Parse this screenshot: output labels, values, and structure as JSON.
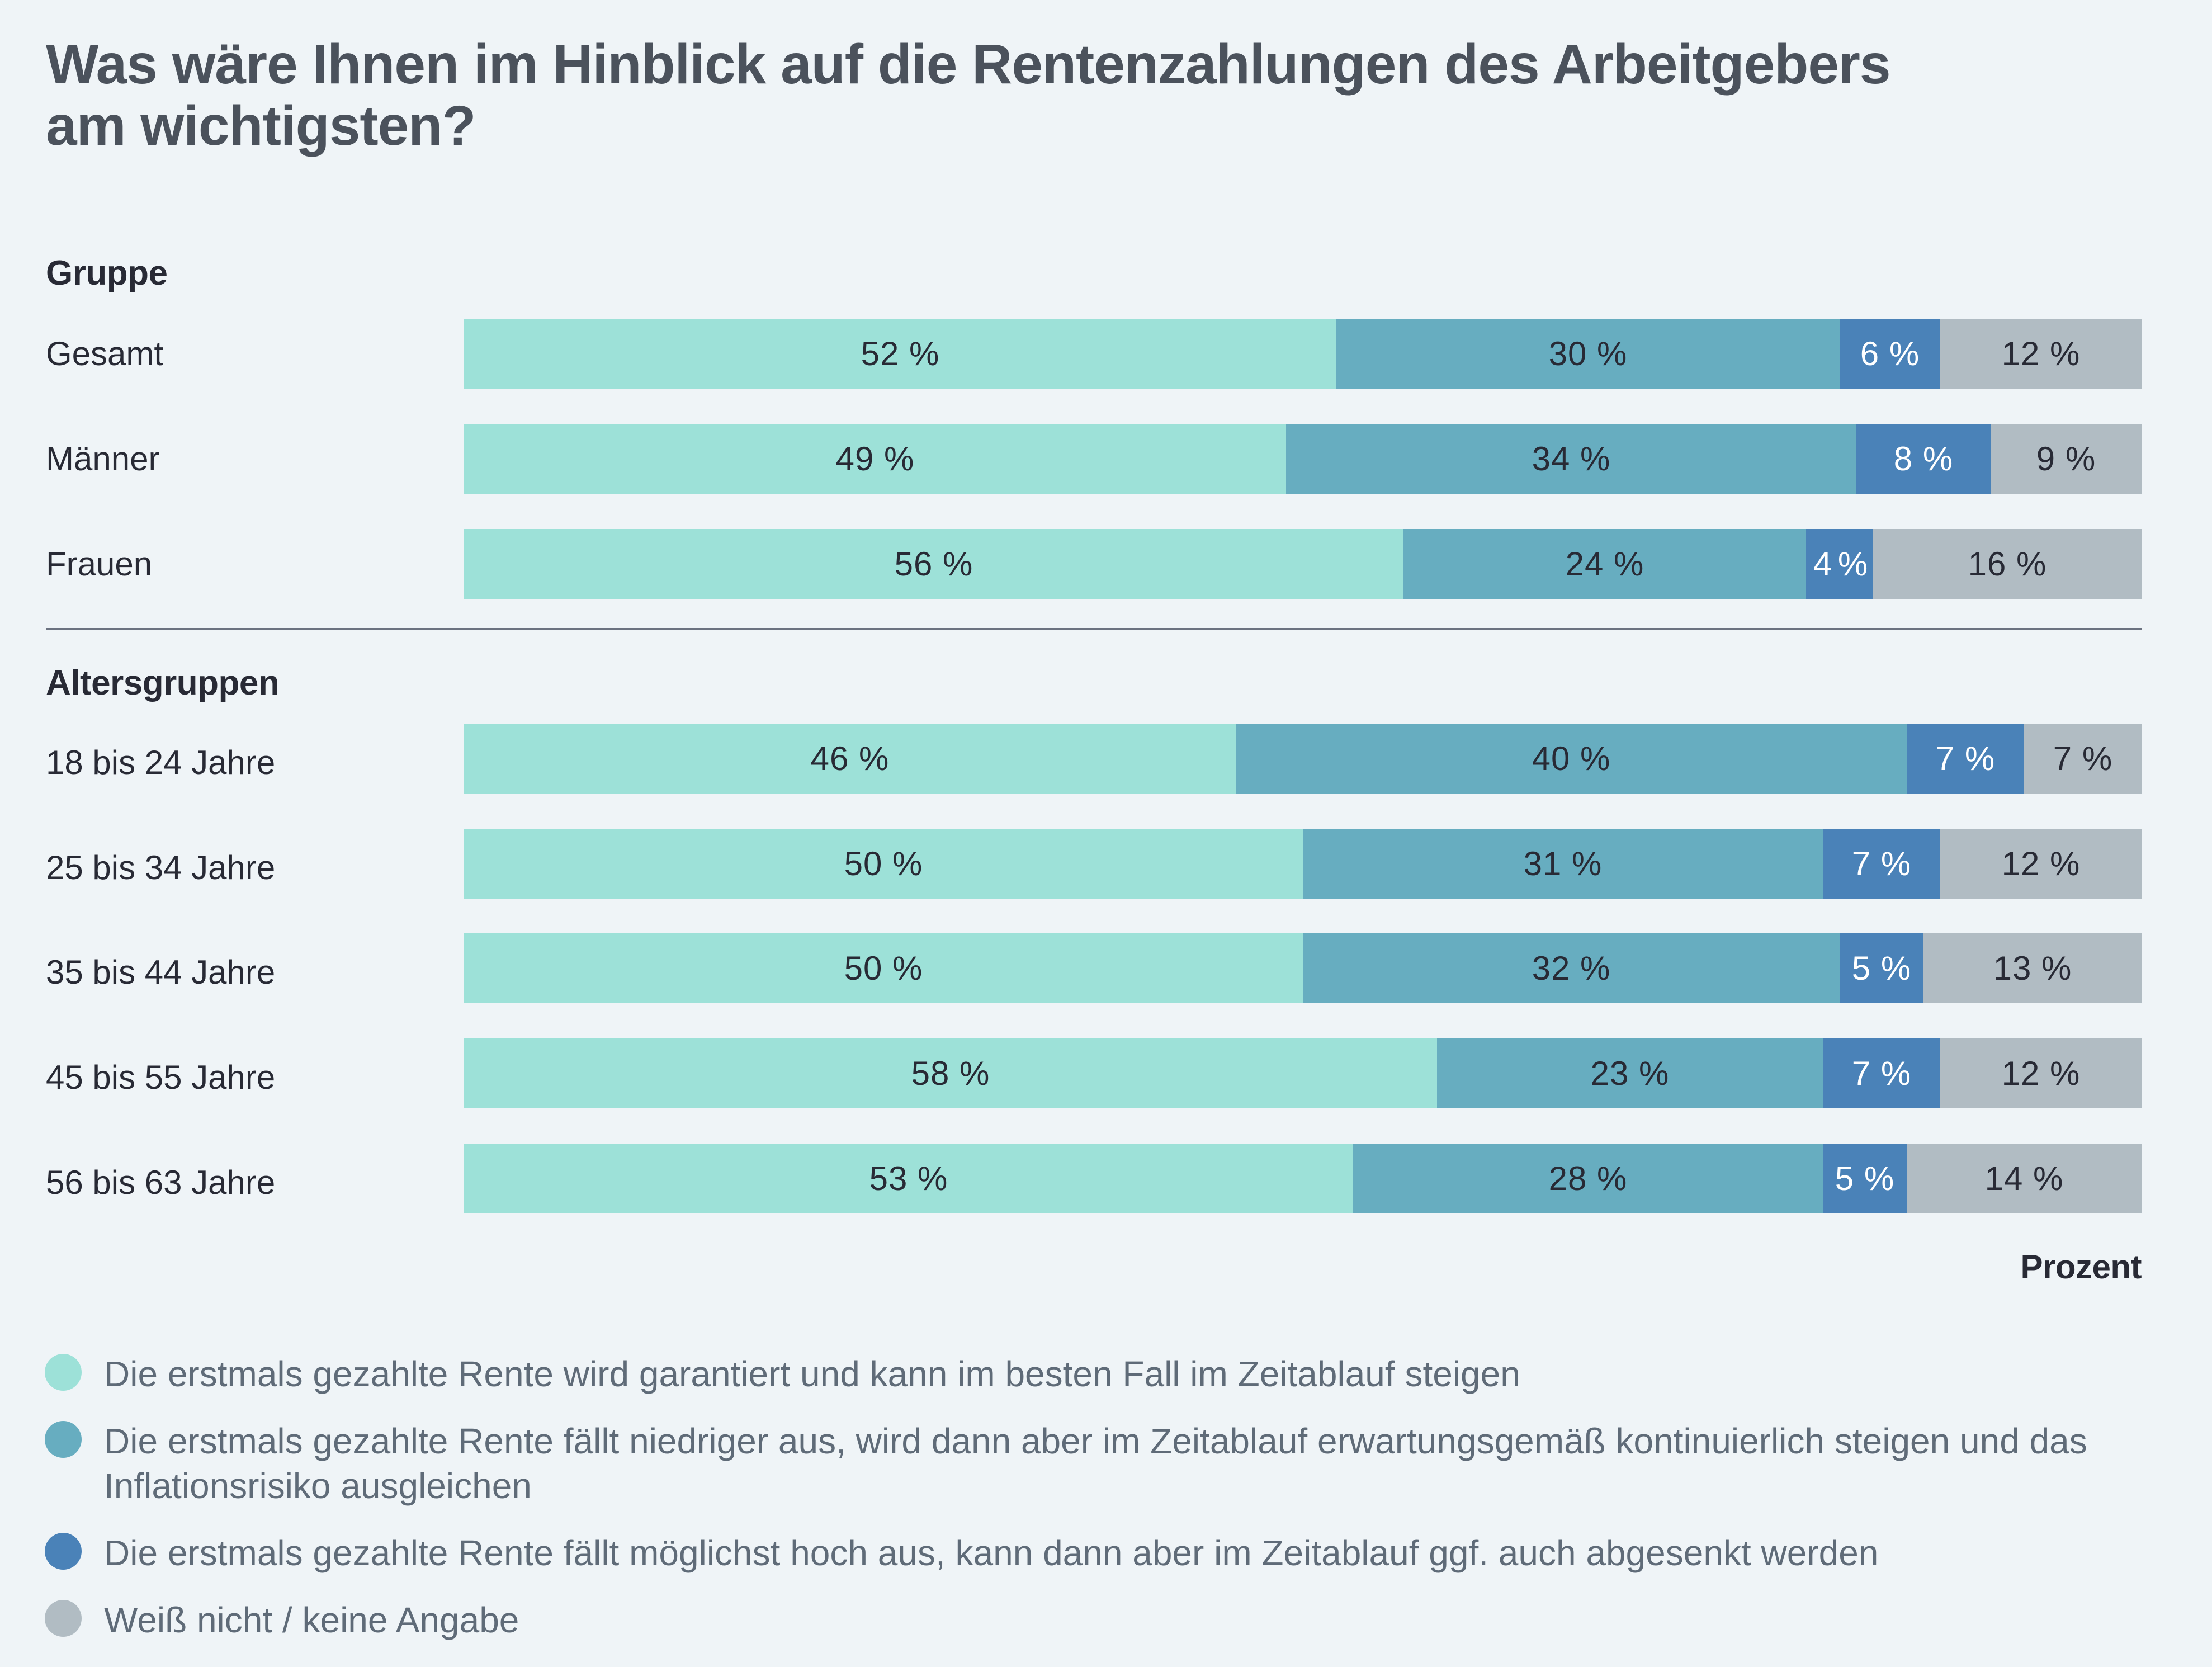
{
  "title": "Was wäre Ihnen im Hinblick auf die Rentenzahlungen des Arbeitgebers am wichtigsten?",
  "title_lines": [
    "Was wäre Ihnen im Hinblick auf die Rentenzahlungen des Arbeitgebers",
    "am wichtigsten?"
  ],
  "unit_label": "Prozent",
  "colors": {
    "background": "#eff4f7",
    "series": [
      "#9de1d8",
      "#67adc0",
      "#4a82b8",
      "#b1bcc3"
    ],
    "label_on_series": [
      "#282a35",
      "#282a35",
      "#ffffff",
      "#282a35"
    ]
  },
  "chart_data": {
    "type": "bar",
    "orientation": "horizontal",
    "stacked": true,
    "title": "Was wäre Ihnen im Hinblick auf die Rentenzahlungen des Arbeitgebers am wichtigsten?",
    "xlabel": "Prozent",
    "ylabel": "",
    "xlim": [
      0,
      100
    ],
    "grid": false,
    "legend_position": "bottom",
    "value_suffix": " %",
    "series": [
      {
        "name": "Die erstmals gezahlte Rente wird garantiert und kann im besten Fall im Zeitablauf steigen"
      },
      {
        "name": "Die erstmals gezahlte Rente fällt niedriger aus, wird dann aber im Zeitablauf erwartungsgemäß kontinuierlich steigen und das Inflationsrisiko ausgleichen"
      },
      {
        "name": "Die erstmals gezahlte Rente fällt möglichst hoch aus, kann dann aber im Zeitablauf ggf. auch abgesenkt werden"
      },
      {
        "name": "Weiß nicht / keine Angabe"
      }
    ],
    "groups": [
      {
        "name": "Gruppe",
        "rows": [
          {
            "label": "Gesamt",
            "values": [
              52,
              30,
              6,
              12
            ]
          },
          {
            "label": "Männer",
            "values": [
              49,
              34,
              8,
              9
            ]
          },
          {
            "label": "Frauen",
            "values": [
              56,
              24,
              4,
              16
            ]
          }
        ]
      },
      {
        "name": "Altersgruppen",
        "rows": [
          {
            "label": "18 bis 24 Jahre",
            "values": [
              46,
              40,
              7,
              7
            ]
          },
          {
            "label": "25 bis 34 Jahre",
            "values": [
              50,
              31,
              7,
              12
            ]
          },
          {
            "label": "35 bis 44 Jahre",
            "values": [
              50,
              32,
              5,
              13
            ]
          },
          {
            "label": "45 bis 55 Jahre",
            "values": [
              58,
              23,
              7,
              12
            ]
          },
          {
            "label": "56 bis 63 Jahre",
            "values": [
              53,
              28,
              5,
              14
            ]
          }
        ]
      }
    ]
  }
}
